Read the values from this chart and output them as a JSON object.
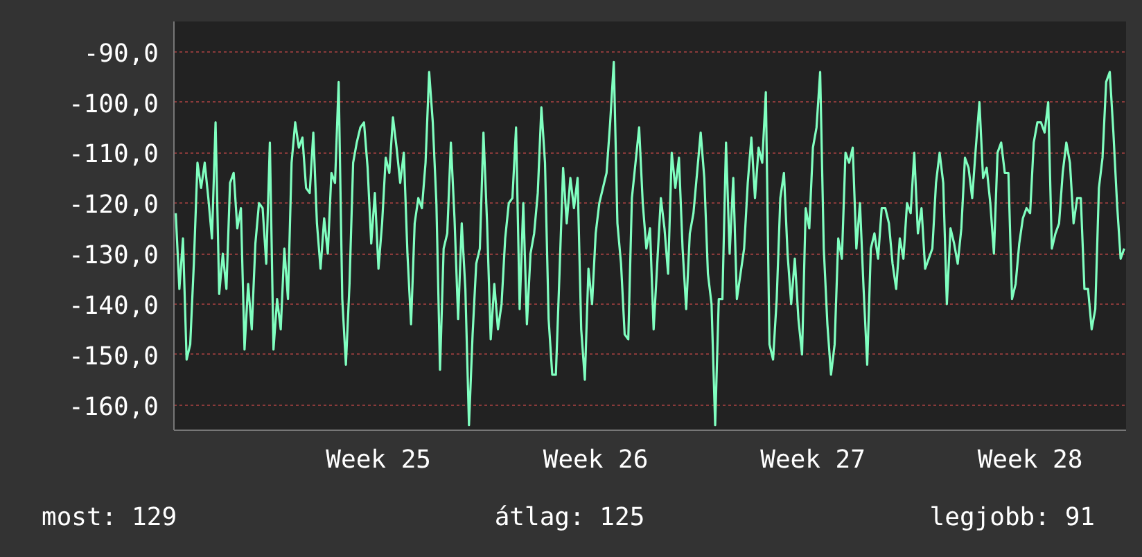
{
  "chart_data": {
    "type": "line",
    "ylim": [
      -165,
      -84
    ],
    "categories": [
      null,
      null,
      null,
      null,
      null,
      null,
      null,
      null,
      null,
      null,
      null,
      null,
      null,
      null,
      null,
      null,
      null,
      null,
      null,
      null,
      null,
      null,
      null,
      null,
      null,
      null,
      null,
      null,
      null,
      null,
      null,
      null,
      null,
      null,
      null,
      null,
      null,
      null,
      null,
      null,
      null,
      null,
      null,
      null,
      null,
      null,
      null,
      null,
      null,
      null,
      null,
      null,
      null,
      null,
      null,
      null,
      "Week 25",
      null,
      null,
      null,
      null,
      null,
      null,
      null,
      null,
      null,
      null,
      null,
      null,
      null,
      null,
      null,
      null,
      null,
      null,
      null,
      null,
      null,
      null,
      null,
      null,
      null,
      null,
      null,
      null,
      null,
      null,
      null,
      null,
      null,
      null,
      null,
      null,
      null,
      null,
      null,
      null,
      null,
      null,
      null,
      null,
      null,
      null,
      null,
      null,
      null,
      null,
      null,
      null,
      null,
      null,
      null,
      null,
      null,
      null,
      null,
      "Week 26",
      null,
      null,
      null,
      null,
      null,
      null,
      null,
      null,
      null,
      null,
      null,
      null,
      null,
      null,
      null,
      null,
      null,
      null,
      null,
      null,
      null,
      null,
      null,
      null,
      null,
      null,
      null,
      null,
      null,
      null,
      null,
      null,
      null,
      null,
      null,
      null,
      null,
      null,
      null,
      null,
      null,
      null,
      null,
      null,
      null,
      null,
      null,
      null,
      null,
      null,
      null,
      null,
      null,
      null,
      null,
      null,
      null,
      null,
      null,
      "Week 27",
      null,
      null,
      null,
      null,
      null,
      null,
      null,
      null,
      null,
      null,
      null,
      null,
      null,
      null,
      null,
      null,
      null,
      null,
      null,
      null,
      null,
      null,
      null,
      null,
      null,
      null,
      null,
      null,
      null,
      null,
      null,
      null,
      null,
      null,
      null,
      null,
      null,
      null,
      null,
      null,
      null,
      null,
      null,
      null,
      null,
      null,
      null,
      null,
      null,
      null,
      null,
      null,
      null,
      null,
      null,
      null,
      null,
      null,
      null,
      "Week 28",
      null,
      null,
      null,
      null,
      null,
      null,
      null,
      null,
      null,
      null,
      null,
      null,
      null,
      null,
      null,
      null,
      null,
      null,
      null,
      null,
      null,
      null,
      null,
      null,
      null,
      null
    ],
    "yticks": [
      {
        "value": -160,
        "label": "-160,0"
      },
      {
        "value": -150,
        "label": "-150,0"
      },
      {
        "value": -140,
        "label": "-140,0"
      },
      {
        "value": -130,
        "label": "-130,0"
      },
      {
        "value": -120,
        "label": "-120,0"
      },
      {
        "value": -110,
        "label": "-110,0"
      },
      {
        "value": -100,
        "label": "-100,0"
      },
      {
        "value": -90,
        "label": "-90,0"
      }
    ],
    "grid": "y",
    "annotations": [
      "most: 129",
      "átlag: 125",
      "legjobb: 91"
    ],
    "series": [
      {
        "color": "#80ffc0",
        "values": [
          -122,
          -137,
          -127,
          -151,
          -148,
          -132,
          -112,
          -117,
          -112,
          -119,
          -127,
          -104,
          -138,
          -130,
          -137,
          -116,
          -114,
          -125,
          -121,
          -149,
          -136,
          -145,
          -128,
          -120,
          -121,
          -132,
          -108,
          -149,
          -139,
          -145,
          -129,
          -139,
          -112,
          -104,
          -109,
          -107,
          -117,
          -118,
          -106,
          -124,
          -133,
          -123,
          -130,
          -114,
          -116,
          -96,
          -139,
          -152,
          -136,
          -112,
          -108,
          -105,
          -104,
          -113,
          -128,
          -118,
          -133,
          -124,
          -111,
          -114,
          -103,
          -109,
          -116,
          -110,
          -130,
          -144,
          -124,
          -119,
          -121,
          -112,
          -94,
          -104,
          -120,
          -153,
          -129,
          -126,
          -108,
          -123,
          -143,
          -124,
          -137,
          -164,
          -146,
          -132,
          -129,
          -106,
          -124,
          -147,
          -136,
          -145,
          -140,
          -127,
          -120,
          -119,
          -105,
          -141,
          -120,
          -144,
          -130,
          -126,
          -118,
          -101,
          -112,
          -143,
          -154,
          -154,
          -134,
          -113,
          -124,
          -115,
          -121,
          -115,
          -145,
          -155,
          -133,
          -140,
          -126,
          -120,
          -117,
          -114,
          -104,
          -92,
          -124,
          -132,
          -146,
          -147,
          -119,
          -112,
          -105,
          -120,
          -129,
          -125,
          -145,
          -132,
          -119,
          -125,
          -134,
          -110,
          -117,
          -111,
          -129,
          -141,
          -126,
          -122,
          -114,
          -106,
          -115,
          -134,
          -140,
          -164,
          -139,
          -139,
          -108,
          -130,
          -115,
          -139,
          -134,
          -129,
          -116,
          -107,
          -119,
          -109,
          -112,
          -98,
          -148,
          -151,
          -139,
          -119,
          -114,
          -130,
          -140,
          -131,
          -143,
          -150,
          -121,
          -125,
          -109,
          -105,
          -94,
          -129,
          -144,
          -154,
          -148,
          -127,
          -131,
          -110,
          -112,
          -109,
          -129,
          -120,
          -137,
          -152,
          -129,
          -126,
          -131,
          -121,
          -121,
          -124,
          -132,
          -137,
          -127,
          -131,
          -120,
          -122,
          -110,
          -126,
          -121,
          -133,
          -131,
          -129,
          -116,
          -110,
          -116,
          -140,
          -125,
          -128,
          -132,
          -125,
          -111,
          -113,
          -119,
          -109,
          -100,
          -115,
          -113,
          -120,
          -130,
          -110,
          -108,
          -114,
          -114,
          -139,
          -136,
          -128,
          -123,
          -121,
          -122,
          -108,
          -104,
          -104,
          -106,
          -100,
          -129,
          -126,
          -124,
          -114,
          -108,
          -112,
          -124,
          -119,
          -119,
          -137,
          -137,
          -145,
          -141,
          -117,
          -111,
          -96,
          -94,
          -106,
          -120,
          -131,
          -129
        ]
      }
    ]
  }
}
